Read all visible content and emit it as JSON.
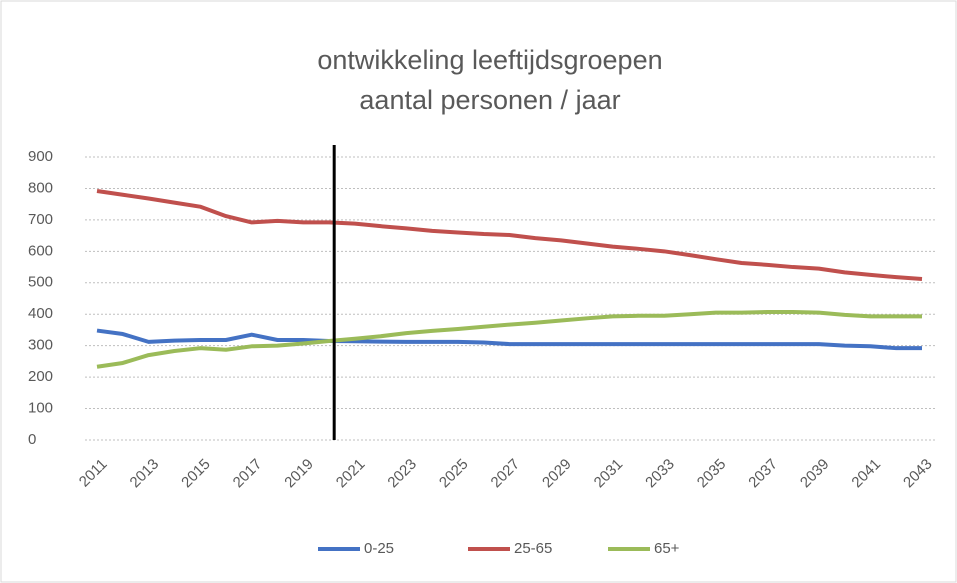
{
  "chart_data": {
    "type": "line",
    "title": [
      "ontwikkeling leeftijdsgroepen",
      "aantal personen / jaar"
    ],
    "x": [
      2011,
      2012,
      2013,
      2014,
      2015,
      2016,
      2017,
      2018,
      2019,
      2020,
      2021,
      2022,
      2023,
      2024,
      2025,
      2026,
      2027,
      2028,
      2029,
      2030,
      2031,
      2032,
      2033,
      2034,
      2035,
      2036,
      2037,
      2038,
      2039,
      2040,
      2041,
      2042,
      2043
    ],
    "xlim": [
      2011,
      2043
    ],
    "xticks": [
      2011,
      2013,
      2015,
      2017,
      2019,
      2021,
      2023,
      2025,
      2027,
      2029,
      2031,
      2033,
      2035,
      2037,
      2039,
      2041,
      2043
    ],
    "ylim": [
      0,
      900
    ],
    "yticks": [
      0,
      100,
      200,
      300,
      400,
      500,
      600,
      700,
      800,
      900
    ],
    "grid": true,
    "legend": "bottom",
    "vline_x": 2020.2,
    "series": [
      {
        "name": "0-25",
        "color": "#4472c4",
        "values": [
          348,
          337,
          312,
          316,
          318,
          318,
          335,
          318,
          318,
          315,
          314,
          313,
          312,
          312,
          312,
          310,
          305,
          305,
          305,
          305,
          305,
          305,
          305,
          305,
          305,
          305,
          305,
          305,
          305,
          300,
          298,
          292,
          292
        ]
      },
      {
        "name": "25-65",
        "color": "#c0504d",
        "values": [
          792,
          780,
          768,
          755,
          742,
          712,
          692,
          697,
          692,
          692,
          688,
          680,
          673,
          665,
          660,
          655,
          652,
          642,
          635,
          625,
          615,
          608,
          600,
          588,
          575,
          563,
          557,
          550,
          545,
          533,
          525,
          518,
          512
        ]
      },
      {
        "name": "65+",
        "color": "#9bbb59",
        "values": [
          233,
          245,
          270,
          283,
          292,
          287,
          298,
          300,
          307,
          315,
          322,
          330,
          340,
          347,
          353,
          360,
          367,
          373,
          380,
          387,
          393,
          395,
          395,
          400,
          405,
          405,
          407,
          407,
          405,
          398,
          393,
          393,
          393
        ]
      }
    ]
  }
}
